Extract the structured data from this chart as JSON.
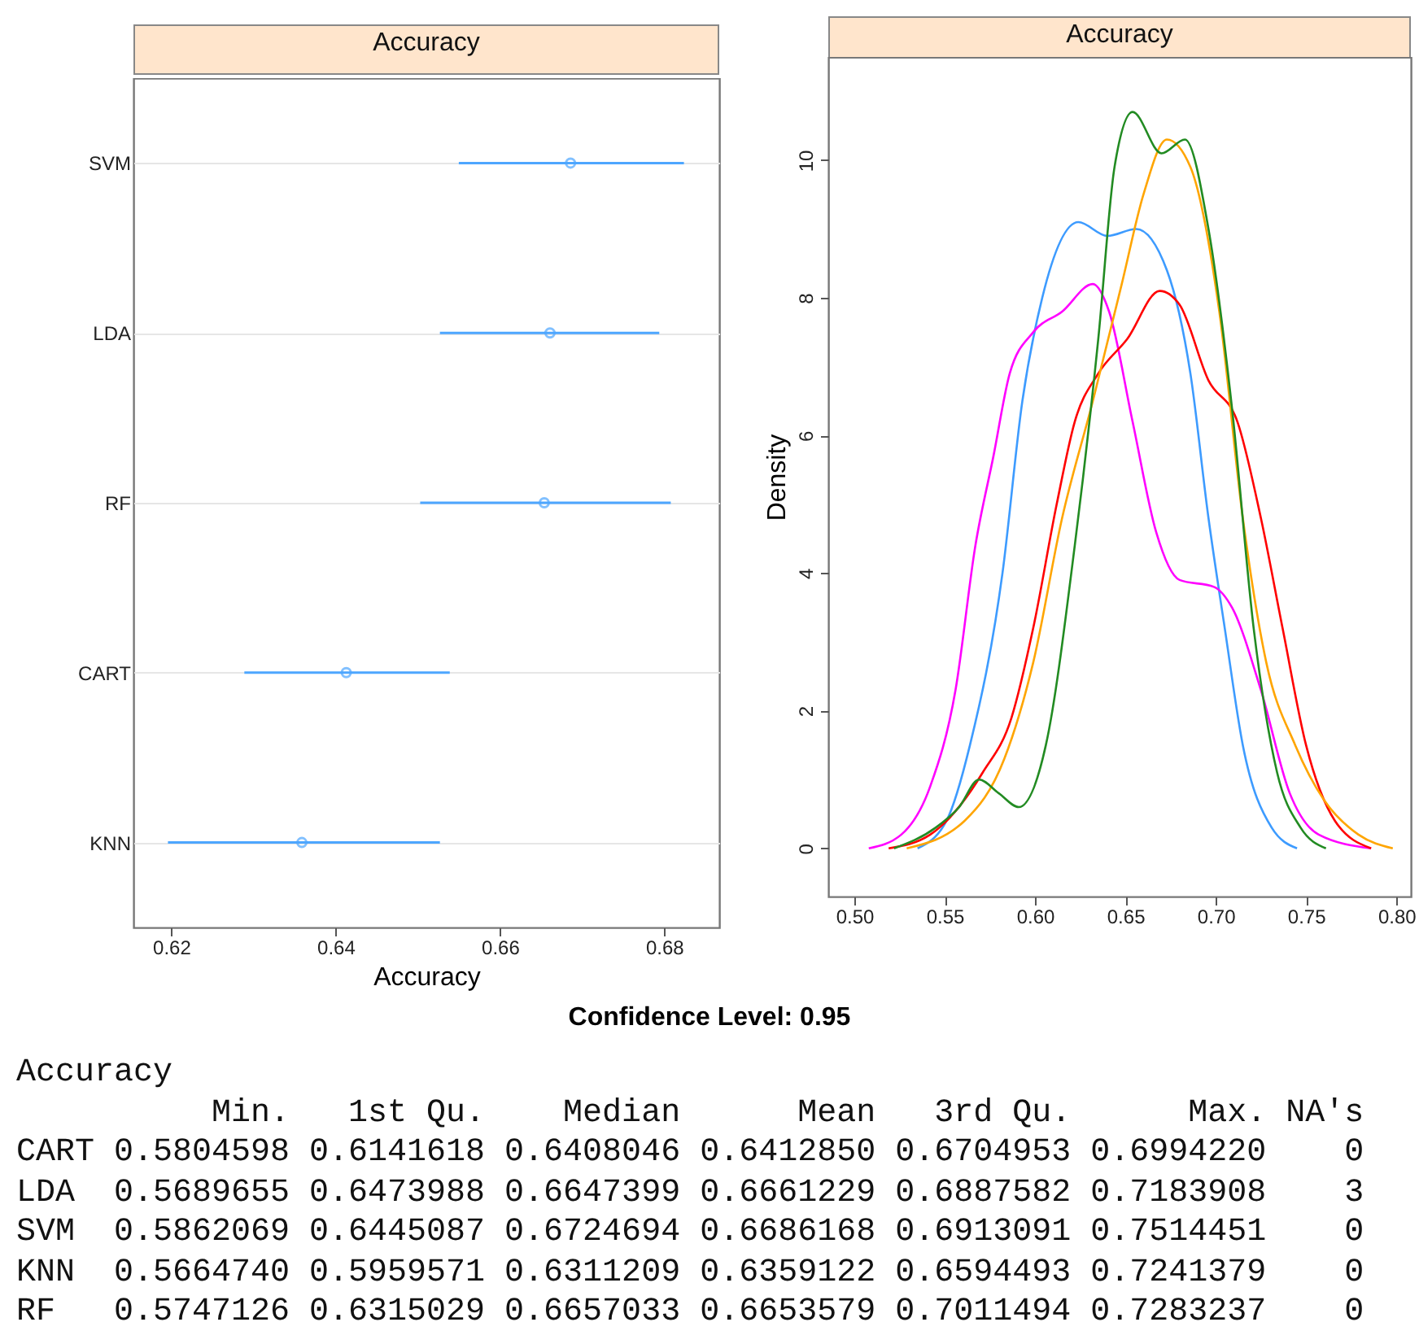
{
  "chart_data": [
    {
      "type": "scatter",
      "title": "Accuracy",
      "xlabel": "Accuracy",
      "orientation": "horizontal",
      "categories": [
        "SVM",
        "LDA",
        "RF",
        "CART",
        "KNN"
      ],
      "series": [
        {
          "color": "#4da6ff",
          "values": [
            0.6686,
            0.6661,
            0.6654,
            0.6413,
            0.6359
          ],
          "errors": [
            [
              0.655,
              0.6824
            ],
            [
              0.6527,
              0.6794
            ],
            [
              0.6503,
              0.6808
            ],
            [
              0.6289,
              0.6539
            ],
            [
              0.6196,
              0.6527
            ]
          ]
        }
      ],
      "xlim": [
        0.6154,
        0.6867
      ],
      "xticks": [
        0.62,
        0.64,
        0.66,
        0.68
      ],
      "grid": "y",
      "marker": "circle",
      "annotations": [
        "Confidence Level: 0.95"
      ]
    },
    {
      "type": "line",
      "title": "Accuracy",
      "ylabel": "Density",
      "line_style": "solid",
      "series": [
        {
          "color": "#3d9bff",
          "x": [
            0.535,
            0.551,
            0.564,
            0.582,
            0.593,
            0.604,
            0.624,
            0.64,
            0.656,
            0.673,
            0.686,
            0.696,
            0.705,
            0.715,
            0.731,
            0.745
          ],
          "values": [
            0,
            0.4,
            1.5,
            4.0,
            6.5,
            8.0,
            9.1,
            8.9,
            9.0,
            8.4,
            6.9,
            4.8,
            3.2,
            1.5,
            0.3,
            0
          ]
        },
        {
          "color": "#ff00ff",
          "x": [
            0.508,
            0.526,
            0.542,
            0.556,
            0.567,
            0.577,
            0.586,
            0.599,
            0.615,
            0.632,
            0.641,
            0.654,
            0.667,
            0.68,
            0.699,
            0.709,
            0.725,
            0.741,
            0.757,
            0.786
          ],
          "values": [
            0,
            0.2,
            0.9,
            2.3,
            4.4,
            5.7,
            6.9,
            7.5,
            7.8,
            8.2,
            7.8,
            6.2,
            4.6,
            3.9,
            3.8,
            3.5,
            2.3,
            0.8,
            0.2,
            0
          ]
        },
        {
          "color": "#ff0000",
          "x": [
            0.519,
            0.542,
            0.571,
            0.587,
            0.599,
            0.612,
            0.622,
            0.635,
            0.651,
            0.669,
            0.68,
            0.696,
            0.712,
            0.725,
            0.737,
            0.75,
            0.766,
            0.786
          ],
          "values": [
            0,
            0.2,
            1.1,
            1.9,
            3.2,
            5.0,
            6.2,
            6.9,
            7.4,
            8.1,
            7.9,
            6.8,
            6.2,
            4.8,
            3.2,
            1.5,
            0.4,
            0
          ]
        },
        {
          "color": "#ffa500",
          "x": [
            0.529,
            0.561,
            0.583,
            0.599,
            0.615,
            0.632,
            0.648,
            0.66,
            0.673,
            0.686,
            0.702,
            0.715,
            0.728,
            0.744,
            0.76,
            0.779,
            0.798
          ],
          "values": [
            0,
            0.4,
            1.3,
            2.7,
            4.8,
            6.5,
            8.2,
            9.5,
            10.3,
            9.9,
            7.8,
            4.8,
            2.7,
            1.5,
            0.7,
            0.2,
            0
          ]
        },
        {
          "color": "#228b22",
          "x": [
            0.522,
            0.545,
            0.558,
            0.569,
            0.58,
            0.591,
            0.606,
            0.622,
            0.635,
            0.644,
            0.654,
            0.67,
            0.683,
            0.696,
            0.709,
            0.721,
            0.734,
            0.747,
            0.761
          ],
          "values": [
            0,
            0.3,
            0.6,
            1.0,
            0.8,
            0.6,
            1.5,
            4.4,
            7.4,
            9.9,
            10.7,
            10.1,
            10.3,
            9.0,
            6.4,
            3.2,
            1.1,
            0.3,
            0
          ]
        }
      ],
      "xlim": [
        0.4856,
        0.808
      ],
      "xticks": [
        {
          "value": 0.5,
          "label": "0.50"
        },
        {
          "value": 0.55,
          "label": "0.55"
        },
        {
          "value": 0.6,
          "label": "0.60"
        },
        {
          "value": 0.65,
          "label": "0.65"
        },
        {
          "value": 0.7,
          "label": "0.70"
        },
        {
          "value": 0.75,
          "label": "0.75"
        },
        {
          "value": 0.8,
          "label": "0.80"
        }
      ],
      "ylim": [
        -0.7,
        11.5
      ],
      "yticks": [
        0,
        2,
        4,
        6,
        8,
        10
      ]
    },
    {
      "type": "other",
      "title": "Accuracy",
      "annotations": [
        "          Min.   1st Qu.    Median      Mean   3rd Qu.      Max. NA's",
        "CART 0.5804598 0.6141618 0.6408046 0.6412850 0.6704953 0.6994220    0",
        "LDA  0.5689655 0.6473988 0.6647399 0.6661229 0.6887582 0.7183908    3",
        "SVM  0.5862069 0.6445087 0.6724694 0.6686168 0.6913091 0.7514451    0",
        "KNN  0.5664740 0.5959571 0.6311209 0.6359122 0.6594493 0.7241379    0",
        "RF   0.5747126 0.6315029 0.6657033 0.6653579 0.7011494 0.7283237    0"
      ]
    }
  ]
}
